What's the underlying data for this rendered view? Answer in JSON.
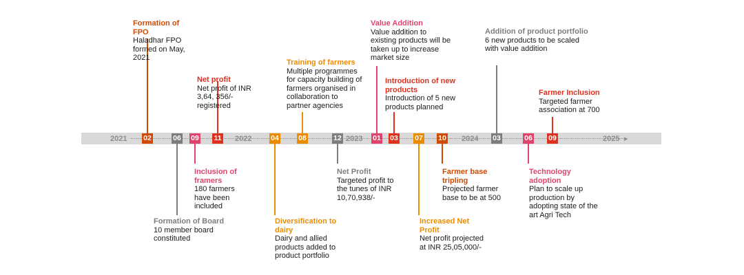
{
  "years": {
    "y2021": "2021",
    "y2022": "2022",
    "y2023": "2023",
    "y2024": "2024",
    "y2025": "2025"
  },
  "badges": [
    "02",
    "06",
    "09",
    "11",
    "04",
    "08",
    "12",
    "01",
    "03",
    "07",
    "10",
    "03",
    "06",
    "09"
  ],
  "events": {
    "formation_fpo": {
      "title": "Formation of FPO",
      "desc": "Haladhar FPO formed on May, 2021"
    },
    "formation_board": {
      "title": "Formation of Board",
      "desc": "10 member board constituted"
    },
    "inclusion_framers": {
      "title": "Inclusion of framers",
      "desc": "180 farmers have been included"
    },
    "net_profit": {
      "title": "Net profit",
      "desc": "Net profit of INR 3,64, 356/- registered"
    },
    "diversification_dairy": {
      "title": "Diversification to dairy",
      "desc": "Dairy and allied products added to product portfolio"
    },
    "training_farmers": {
      "title": "Training of farmers",
      "desc": "Multiple programmes for capacity building of farmers organised in collaboration to partner agencies"
    },
    "net_profit_2": {
      "title": "Net Profit",
      "desc": "Targeted profit to the tunes of INR 10,70,938/-"
    },
    "value_addition": {
      "title": "Value Addition",
      "desc": "Value addition to existing products will be taken up to increase market size"
    },
    "new_products": {
      "title": "Introduction of new products",
      "desc": "Introduction of 5 new products planned"
    },
    "increased_profit": {
      "title": "Increased Net Profit",
      "desc": "Net profit projected at INR 25,05,000/-"
    },
    "farmer_tripling": {
      "title": "Farmer base tripling",
      "desc": "Projected farmer base to be at 500"
    },
    "product_portfolio": {
      "title": "Addition of product portfolio",
      "desc": "6 new products to be scaled with value addition"
    },
    "tech_adoption": {
      "title": "Technology adoption",
      "desc": "Plan to scale up production by adopting state of the art Agri Tech"
    },
    "farmer_inclusion": {
      "title": "Farmer Inclusion",
      "desc": "Targeted farmer association at 700"
    }
  },
  "colors": {
    "rust": "#d04a02",
    "pink": "#e0446c",
    "red": "#e0301e",
    "orange": "#eb8c00",
    "gray": "#7d7d7d",
    "band": "#d9d9d9"
  }
}
